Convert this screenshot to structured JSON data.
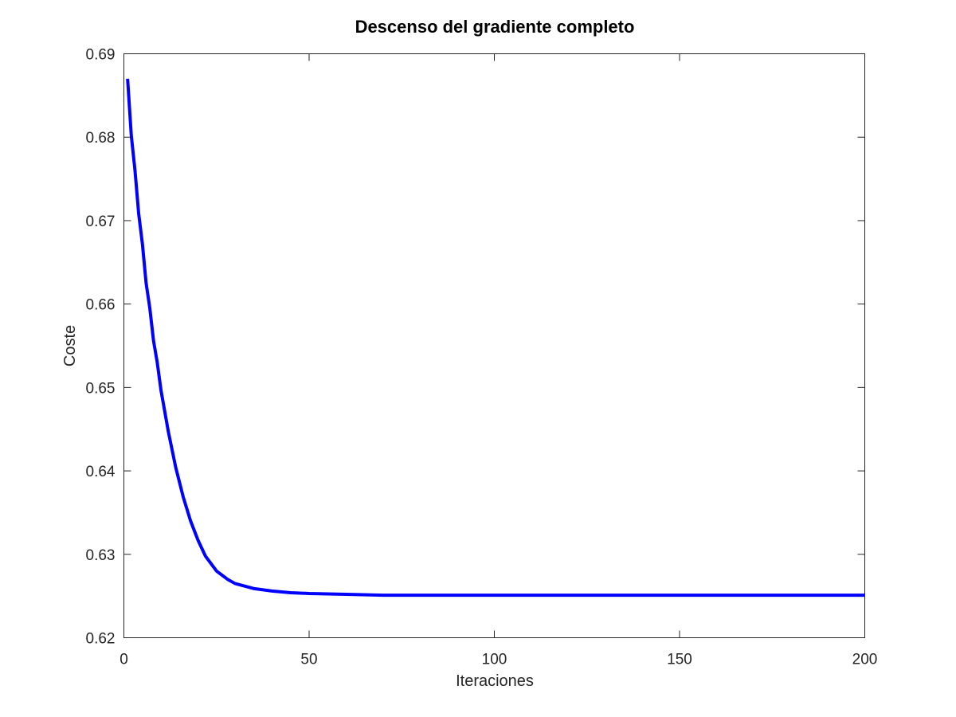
{
  "chart_data": {
    "type": "line",
    "title": "Descenso del gradiente completo",
    "xlabel": "Iteraciones",
    "ylabel": "Coste",
    "xlim": [
      0,
      200
    ],
    "ylim": [
      0.62,
      0.69
    ],
    "xticks": [
      0,
      50,
      100,
      150,
      200
    ],
    "xtick_labels": [
      "0",
      "50",
      "100",
      "150",
      "200"
    ],
    "yticks": [
      0.62,
      0.63,
      0.64,
      0.65,
      0.66,
      0.67,
      0.68,
      0.69
    ],
    "ytick_labels": [
      "0.62",
      "0.63",
      "0.64",
      "0.65",
      "0.66",
      "0.67",
      "0.68",
      "0.69"
    ],
    "grid": false,
    "series": [
      {
        "color": "#0000ff",
        "x": [
          1,
          2,
          3,
          4,
          5,
          6,
          7,
          8,
          9,
          10,
          12,
          14,
          16,
          18,
          20,
          22,
          25,
          28,
          30,
          35,
          40,
          45,
          50,
          60,
          70,
          80,
          100,
          150,
          200
        ],
        "y": [
          0.687,
          0.6802,
          0.676,
          0.6708,
          0.6672,
          0.6625,
          0.6595,
          0.6556,
          0.653,
          0.6497,
          0.6447,
          0.6404,
          0.6369,
          0.634,
          0.6317,
          0.6298,
          0.628,
          0.627,
          0.6265,
          0.6259,
          0.6256,
          0.6254,
          0.6253,
          0.6252,
          0.6251,
          0.6251,
          0.6251,
          0.6251,
          0.6251
        ]
      }
    ]
  }
}
